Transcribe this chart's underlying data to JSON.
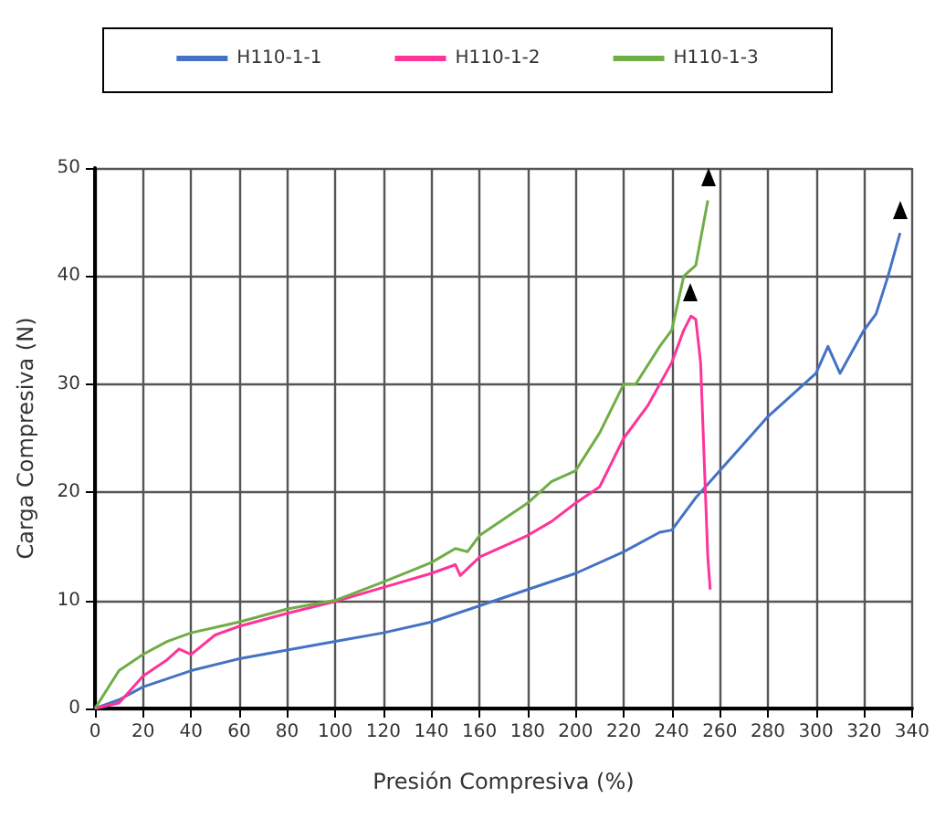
{
  "chart_data": {
    "type": "line",
    "xlabel": "Presión Compresiva (%)",
    "ylabel": "Carga Compresiva (N)",
    "xlim": [
      0,
      340
    ],
    "xticks": [
      0,
      20,
      40,
      60,
      80,
      100,
      120,
      140,
      160,
      180,
      200,
      220,
      240,
      260,
      280,
      300,
      320,
      340
    ],
    "ylim": [
      0,
      50
    ],
    "yticks": [
      0,
      10,
      20,
      30,
      40,
      50
    ],
    "grid": true,
    "legend": "top",
    "marker": "none",
    "line_style": "solid",
    "series": [
      {
        "name": "H110-1-1",
        "color": "#4472c4",
        "x": [
          0,
          10,
          20,
          40,
          60,
          80,
          100,
          120,
          140,
          160,
          180,
          200,
          220,
          235,
          240,
          250,
          260,
          270,
          280,
          290,
          300,
          305,
          310,
          320,
          325,
          330,
          335
        ],
        "values": [
          0,
          0.8,
          2,
          3.5,
          4.6,
          5.4,
          6.2,
          7,
          8,
          9.5,
          11,
          12.5,
          14.5,
          16.3,
          16.5,
          19.5,
          22,
          24.5,
          27,
          29,
          31,
          33.5,
          31,
          35,
          36.5,
          40,
          44
        ]
      },
      {
        "name": "H110-1-2",
        "color": "#ff3399",
        "x": [
          0,
          10,
          20,
          30,
          35,
          40,
          50,
          60,
          80,
          100,
          120,
          140,
          150,
          152,
          160,
          180,
          190,
          200,
          210,
          220,
          230,
          240,
          245,
          248,
          250,
          252,
          254,
          255,
          256
        ],
        "values": [
          0,
          0.5,
          3,
          4.5,
          5.5,
          5,
          6.8,
          7.6,
          8.8,
          9.9,
          11.2,
          12.5,
          13.3,
          12.3,
          14,
          16,
          17.3,
          19,
          20.5,
          25,
          28,
          32,
          35,
          36.3,
          36,
          32,
          20,
          14,
          11
        ]
      },
      {
        "name": "H110-1-3",
        "color": "#70ad47",
        "x": [
          0,
          10,
          20,
          30,
          40,
          60,
          80,
          100,
          120,
          140,
          150,
          155,
          160,
          180,
          190,
          200,
          210,
          220,
          225,
          235,
          240,
          245,
          250,
          255
        ],
        "values": [
          0,
          3.5,
          5,
          6.2,
          7,
          8,
          9.2,
          10,
          11.7,
          13.5,
          14.8,
          14.5,
          16,
          19,
          21,
          22,
          25.5,
          30,
          30,
          33.5,
          35,
          40,
          41,
          47
        ]
      }
    ]
  }
}
